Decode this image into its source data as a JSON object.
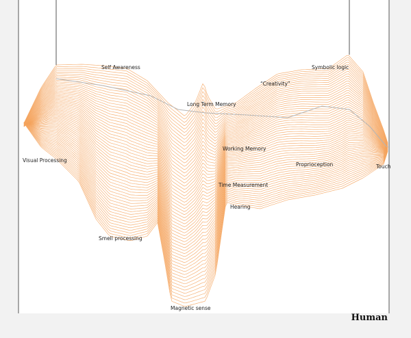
{
  "title": "Human",
  "colors": {
    "background": "#f2f2f2",
    "panel": "#ffffff",
    "line": "#f5a35d",
    "midline": "#b5b5b5",
    "text": "#222222"
  },
  "labels": [
    "Self Awareness",
    "“Creativity”",
    "Symbolic logic",
    "Long Term Memory",
    "Working Memory",
    "Visual Processing",
    "Proprioception",
    "Touch",
    "Time Measurement",
    "Hearing",
    "Smell processing",
    "Magnetic sense"
  ]
}
